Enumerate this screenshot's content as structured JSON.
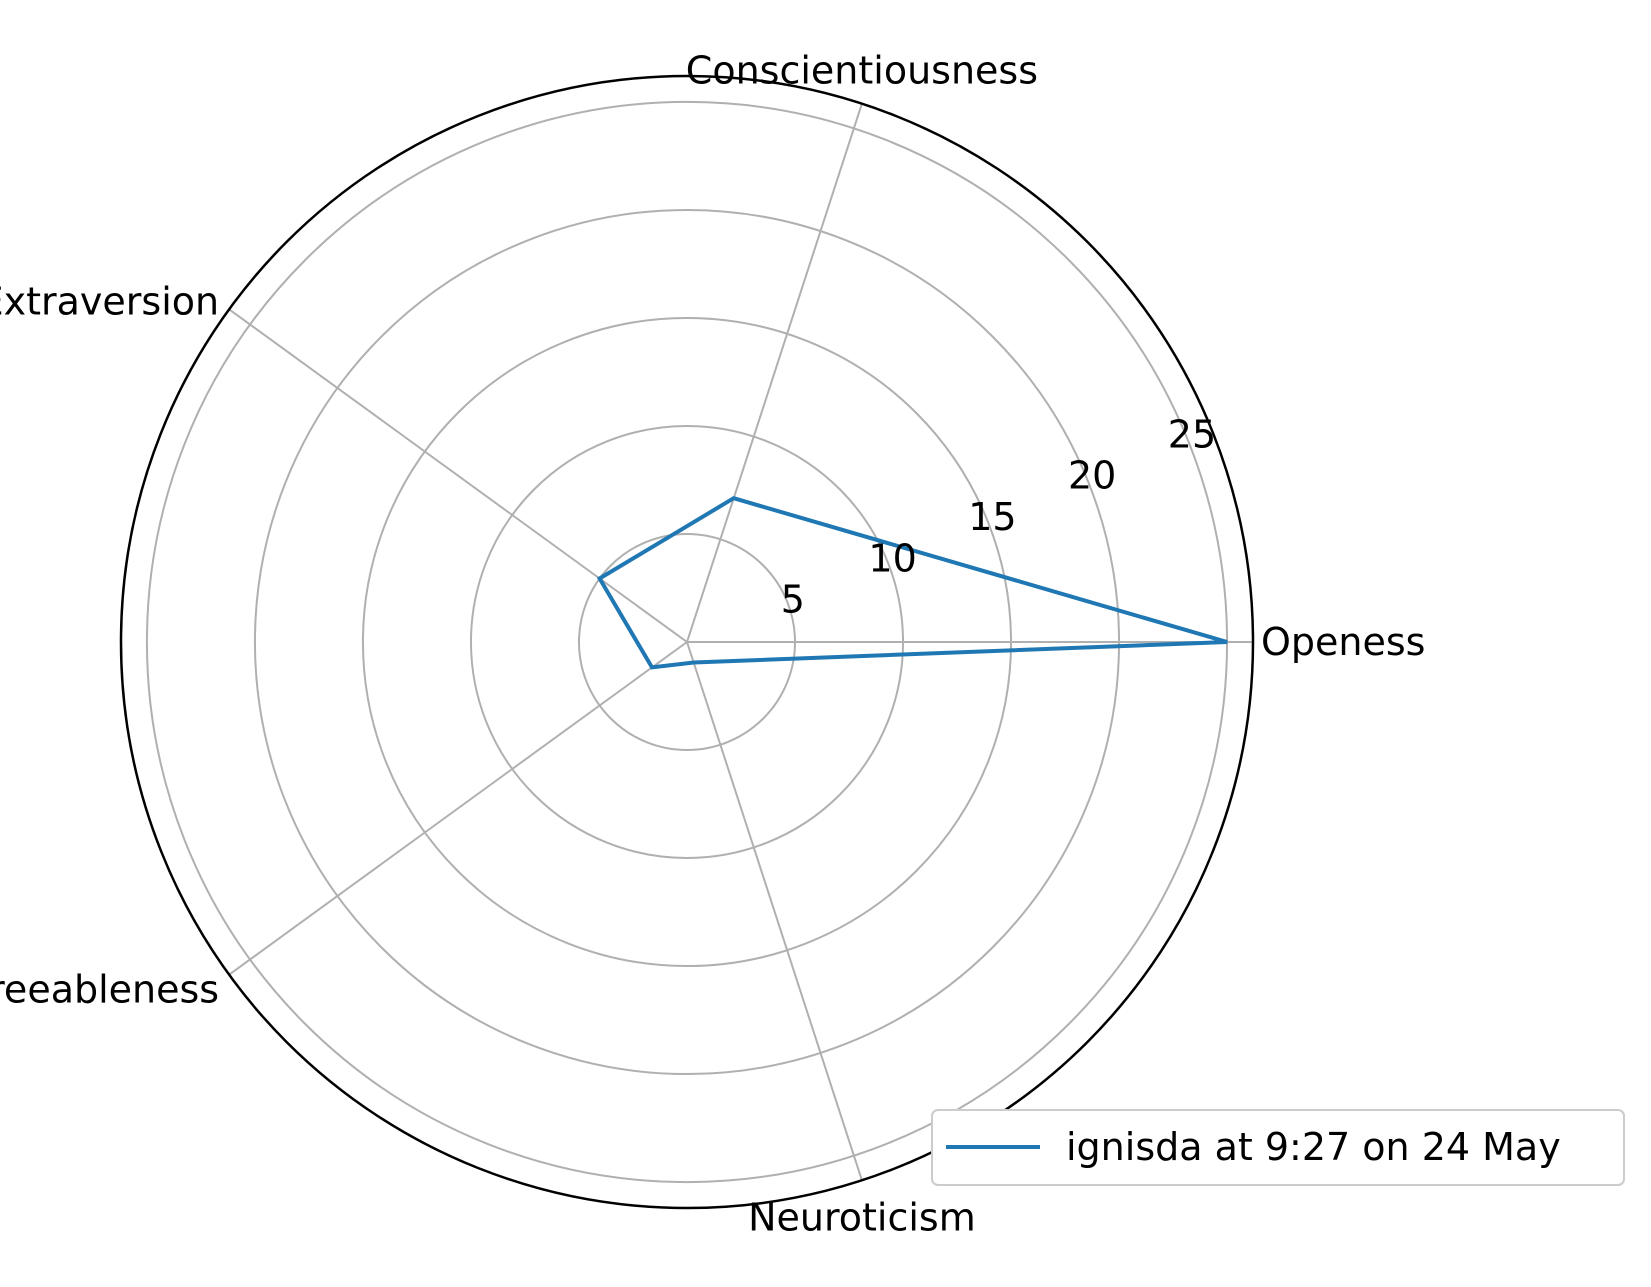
{
  "chart_data": {
    "type": "radar",
    "categories": [
      "Openess",
      "Conscientiousness",
      "Extraversion",
      "Agreeableness",
      "Neuroticism"
    ],
    "series": [
      {
        "name": "ignisda at 9:27 on 24 May",
        "values": [
          25,
          7,
          5,
          2,
          1
        ]
      }
    ],
    "rlim": [
      0,
      26.2
    ],
    "rticks": [
      5,
      10,
      15,
      20,
      25
    ],
    "rtick_labels": [
      "5",
      "10",
      "15",
      "20",
      "25"
    ],
    "grid": true,
    "legend_position": "lower-right",
    "colors": {
      "series": "#1f77b4",
      "grid": "#b0b0b0",
      "frame": "#000000"
    }
  }
}
